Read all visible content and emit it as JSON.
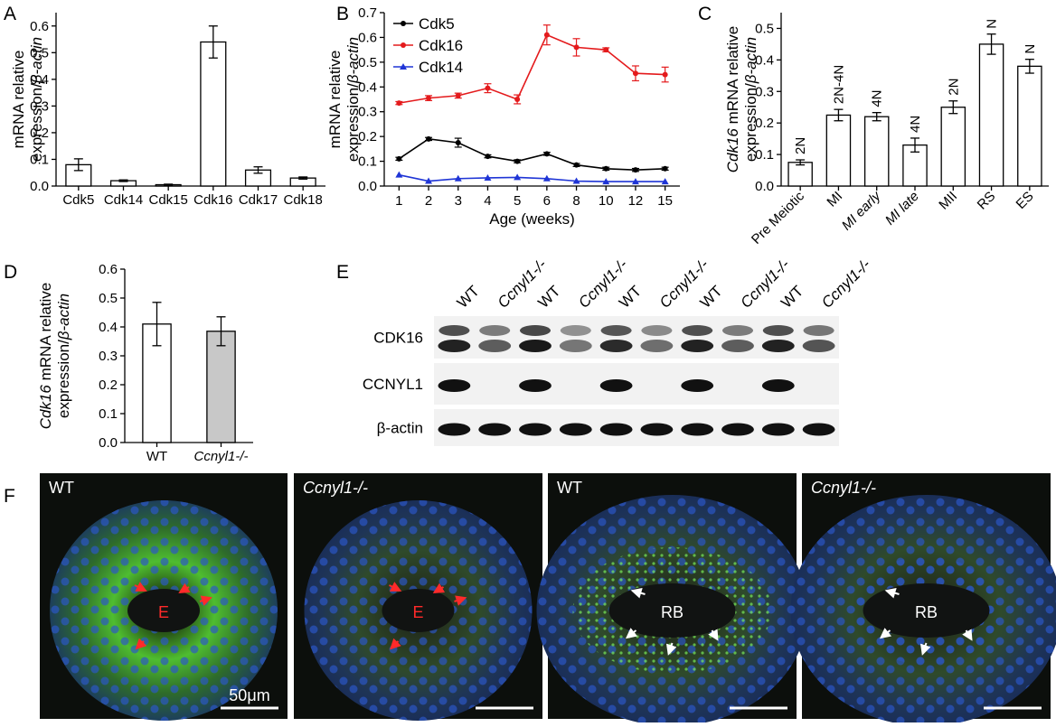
{
  "panels": {
    "A": "A",
    "B": "B",
    "C": "C",
    "D": "D",
    "E": "E",
    "F": "F"
  },
  "chart_data": [
    {
      "id": "A",
      "type": "bar",
      "categories": [
        "Cdk5",
        "Cdk14",
        "Cdk15",
        "Cdk16",
        "Cdk17",
        "Cdk18"
      ],
      "values": [
        0.08,
        0.02,
        0.005,
        0.54,
        0.06,
        0.03
      ],
      "errors": [
        0.022,
        0.003,
        0.002,
        0.06,
        0.012,
        0.004
      ],
      "ylabel_line1": "mRNA relative",
      "ylabel_line2_prefix": "expression/",
      "ylabel_line2_italic": "β-actin",
      "ylim": [
        0,
        0.65
      ],
      "yticks": [
        "0.0",
        "0.1",
        "0.2",
        "0.3",
        "0.4",
        "0.5",
        "0.6"
      ]
    },
    {
      "id": "B",
      "type": "line",
      "x": [
        "1",
        "2",
        "3",
        "4",
        "5",
        "6",
        "8",
        "10",
        "12",
        "15"
      ],
      "xlabel": "Age (weeks)",
      "ylabel_line1": "mRNA relative",
      "ylabel_line2_prefix": "expression/",
      "ylabel_line2_italic": "β-actin",
      "ylim": [
        0,
        0.7
      ],
      "yticks": [
        "0.0",
        "0.1",
        "0.2",
        "0.3",
        "0.4",
        "0.5",
        "0.6",
        "0.7"
      ],
      "legend_position": "top-left",
      "series": [
        {
          "name": "Cdk5",
          "color": "#000000",
          "marker": "circle",
          "values": [
            0.11,
            0.19,
            0.175,
            0.12,
            0.1,
            0.13,
            0.085,
            0.07,
            0.065,
            0.07
          ],
          "errors": [
            0.006,
            0.006,
            0.018,
            0.006,
            0.006,
            0.006,
            0.006,
            0.006,
            0.006,
            0.006
          ]
        },
        {
          "name": "Cdk16",
          "color": "#e41a1c",
          "marker": "circle",
          "values": [
            0.335,
            0.355,
            0.365,
            0.395,
            0.35,
            0.61,
            0.56,
            0.55,
            0.455,
            0.45
          ],
          "errors": [
            0.006,
            0.01,
            0.01,
            0.018,
            0.018,
            0.04,
            0.035,
            0.008,
            0.03,
            0.03
          ]
        },
        {
          "name": "Cdk14",
          "color": "#1f35d6",
          "marker": "triangle",
          "values": [
            0.045,
            0.02,
            0.03,
            0.033,
            0.035,
            0.03,
            0.02,
            0.018,
            0.018,
            0.018
          ],
          "errors": [
            0.003,
            0.003,
            0.003,
            0.003,
            0.003,
            0.003,
            0.003,
            0.003,
            0.003,
            0.003
          ]
        }
      ]
    },
    {
      "id": "C",
      "type": "bar",
      "categories": [
        "Pre Meiotic",
        "MI",
        "MI early",
        "MI late",
        "MII",
        "RS",
        "ES"
      ],
      "italic_categories": [
        "MI early",
        "MI late"
      ],
      "values": [
        0.075,
        0.225,
        0.22,
        0.13,
        0.25,
        0.45,
        0.38
      ],
      "errors": [
        0.008,
        0.018,
        0.013,
        0.022,
        0.02,
        0.032,
        0.022
      ],
      "bar_annotations": [
        "2N",
        "2N-4N",
        "4N",
        "4N",
        "2N",
        "N",
        "N"
      ],
      "ylabel_line1_italic": "Cdk16",
      "ylabel_line1_rest": " mRNA relative",
      "ylabel_line2_prefix": "expression/",
      "ylabel_line2_italic": "β-actin",
      "ylim": [
        0,
        0.55
      ],
      "yticks": [
        "0.0",
        "0.1",
        "0.2",
        "0.3",
        "0.4",
        "0.5"
      ]
    },
    {
      "id": "D",
      "type": "bar",
      "categories": [
        "WT",
        "Ccnyl1-/-"
      ],
      "italic_categories": [
        "Ccnyl1-/-"
      ],
      "values": [
        0.41,
        0.385
      ],
      "errors": [
        0.075,
        0.05
      ],
      "colors": [
        "#ffffff",
        "#c8c8c8"
      ],
      "ylabel_line1_italic": "Cdk16",
      "ylabel_line1_rest": " mRNA relative",
      "ylabel_line2_prefix": "expression/",
      "ylabel_line2_italic": "β-actin",
      "ylim": [
        0,
        0.6
      ],
      "yticks": [
        "0.0",
        "0.1",
        "0.2",
        "0.3",
        "0.4",
        "0.5",
        "0.6"
      ]
    }
  ],
  "western_blot": {
    "lanes": [
      "WT",
      "Ccnyl1-/-",
      "WT",
      "Ccnyl1-/-",
      "WT",
      "Ccnyl1-/-",
      "WT",
      "Ccnyl1-/-",
      "WT",
      "Ccnyl1-/-"
    ],
    "rows": [
      {
        "label": "CDK16",
        "band_intensity": [
          0.9,
          0.55,
          0.95,
          0.4,
          0.85,
          0.45,
          0.9,
          0.55,
          0.9,
          0.6
        ]
      },
      {
        "label": "CCNYL1",
        "band_intensity": [
          1,
          0,
          1,
          0,
          1,
          0,
          1,
          0,
          1,
          0
        ]
      },
      {
        "label": "β-actin",
        "band_intensity": [
          1,
          1,
          1,
          1,
          1,
          1,
          1,
          1,
          1,
          1
        ]
      }
    ]
  },
  "micrographs": [
    {
      "genotype": "WT",
      "italic": false,
      "annotations": [
        "E"
      ],
      "annotation_color": "#ff2a2a",
      "scale_bar": "50μm"
    },
    {
      "genotype": "Ccnyl1-/-",
      "italic": true,
      "annotations": [
        "E"
      ],
      "annotation_color": "#ff2a2a",
      "scale_bar": ""
    },
    {
      "genotype": "WT",
      "italic": false,
      "annotations": [
        "RB"
      ],
      "annotation_color": "#ffffff",
      "scale_bar": ""
    },
    {
      "genotype": "Ccnyl1-/-",
      "italic": true,
      "annotations": [
        "RB"
      ],
      "annotation_color": "#ffffff",
      "scale_bar": ""
    }
  ]
}
